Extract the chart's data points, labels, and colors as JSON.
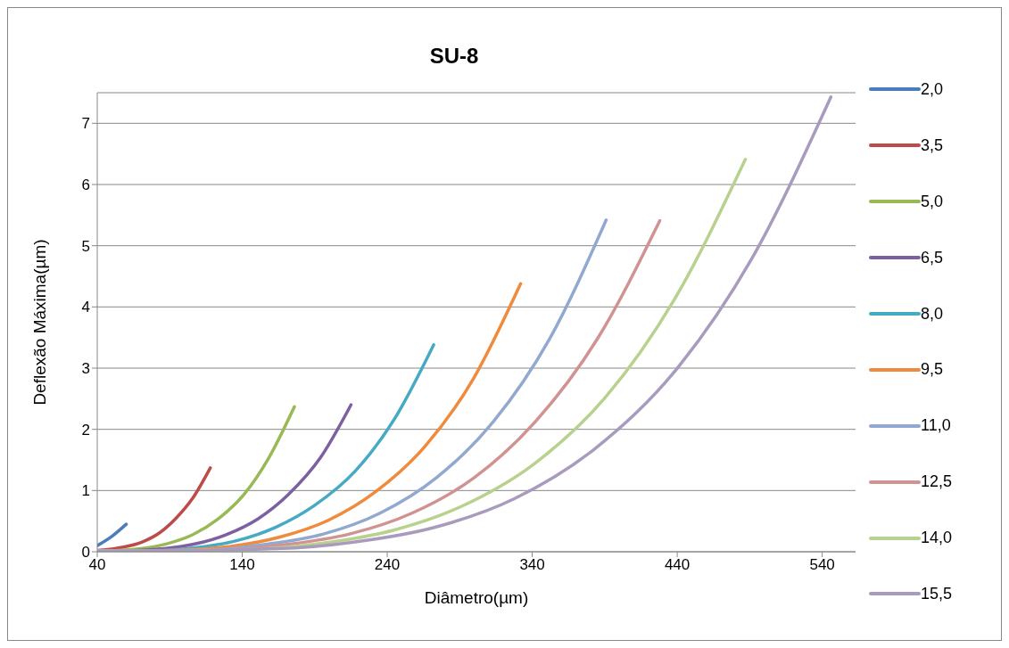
{
  "chart_data": {
    "type": "line",
    "title": "SU-8",
    "xlabel": "Diâmetro(µm)",
    "ylabel": "Deflexão Máxima(µm)",
    "xlim": [
      40,
      563
    ],
    "xticks": [
      40,
      140,
      240,
      340,
      440,
      540
    ],
    "ylim": [
      0,
      7.5
    ],
    "yticks": [
      0,
      1,
      2,
      3,
      4,
      5,
      6,
      7
    ],
    "grid": "y",
    "legend": "right",
    "marker": "none",
    "line_style": "solid",
    "series": [
      {
        "name": "2,0",
        "color": "#4a7ebb",
        "x": [
          40,
          50,
          60
        ],
        "values": [
          0.1,
          0.25,
          0.45
        ]
      },
      {
        "name": "3,5",
        "color": "#be4b48",
        "x": [
          40,
          59,
          71,
          83,
          94,
          106,
          118
        ],
        "values": [
          0.02,
          0.08,
          0.16,
          0.31,
          0.54,
          0.88,
          1.37
        ]
      },
      {
        "name": "5,0",
        "color": "#98b954",
        "x": [
          40,
          53,
          70,
          88,
          106,
          123,
          141,
          158,
          176
        ],
        "values": [
          0.01,
          0.02,
          0.05,
          0.13,
          0.28,
          0.53,
          0.93,
          1.52,
          2.37
        ]
      },
      {
        "name": "6,5",
        "color": "#7d60a0",
        "x": [
          40,
          65,
          86,
          108,
          129,
          151,
          172,
          194,
          215
        ],
        "values": [
          0.01,
          0.02,
          0.05,
          0.13,
          0.28,
          0.54,
          0.94,
          1.54,
          2.4
        ]
      },
      {
        "name": "8,0",
        "color": "#46aac5",
        "x": [
          40,
          82,
          109,
          136,
          163,
          190,
          218,
          245,
          272
        ],
        "values": [
          0.01,
          0.02,
          0.07,
          0.18,
          0.4,
          0.76,
          1.32,
          2.17,
          3.38
        ]
      },
      {
        "name": "9,5",
        "color": "#f08a3c",
        "x": [
          40,
          100,
          133,
          166,
          199,
          232,
          266,
          299,
          332
        ],
        "values": [
          0.01,
          0.03,
          0.09,
          0.24,
          0.51,
          0.98,
          1.72,
          2.81,
          4.38
        ]
      },
      {
        "name": "11,0",
        "color": "#92a9cf",
        "x": [
          40,
          117,
          156,
          196,
          235,
          274,
          313,
          352,
          391
        ],
        "values": [
          0.01,
          0.03,
          0.12,
          0.29,
          0.63,
          1.21,
          2.12,
          3.48,
          5.42
        ]
      },
      {
        "name": "12,5",
        "color": "#d19392",
        "x": [
          40,
          128,
          171,
          214,
          257,
          300,
          342,
          385,
          428
        ],
        "values": [
          0.01,
          0.03,
          0.12,
          0.29,
          0.63,
          1.21,
          2.12,
          3.48,
          5.41
        ]
      },
      {
        "name": "14,0",
        "color": "#b9d18e",
        "x": [
          40,
          146,
          195,
          244,
          292,
          341,
          390,
          438,
          487
        ],
        "values": [
          0.01,
          0.04,
          0.14,
          0.35,
          0.75,
          1.43,
          2.51,
          4.12,
          6.41
        ]
      },
      {
        "name": "15,5",
        "color": "#a99bbd",
        "x": [
          40,
          164,
          218,
          273,
          328,
          382,
          437,
          491,
          546
        ],
        "values": [
          0.01,
          0.05,
          0.16,
          0.4,
          0.87,
          1.66,
          2.91,
          4.77,
          7.43
        ]
      }
    ]
  }
}
